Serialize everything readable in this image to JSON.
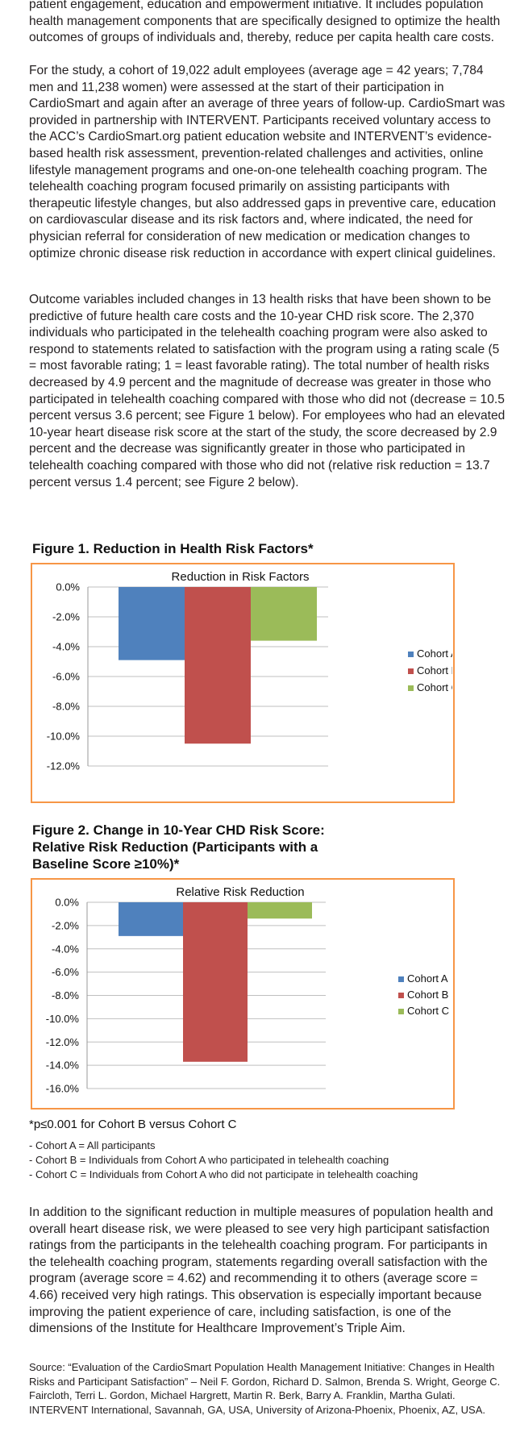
{
  "paragraphs": {
    "intro": "patient engagement, education and empowerment initiative. It includes population health management components that are specifically designed to optimize the health outcomes of groups of individuals and, thereby, reduce per capita health care costs.",
    "study": "For the study, a cohort of 19,022 adult employees (average age = 42 years; 7,784 men and 11,238 women) were assessed at the start of their participation in CardioSmart and again after an average of three years of follow-up. CardioSmart was provided in partnership with INTERVENT. Participants received voluntary access to the ACC’s CardioSmart.org patient education website and INTERVENT’s evidence-based health risk assessment, prevention-related challenges and activities, online lifestyle management programs and one-on-one telehealth coaching program. The telehealth coaching program focused primarily on assisting participants with therapeutic lifestyle changes, but also addressed gaps in preventive care, education on cardiovascular disease and its risk factors and, where indicated, the need for physician referral for consideration of new medication or medication changes to optimize chronic disease risk reduction in accordance with expert clinical guidelines.",
    "outcomes": "Outcome variables included changes in 13 health risks that have been shown to be predictive of future health care costs and the 10-year CHD risk score. The 2,370 individuals who participated in the telehealth coaching program were also asked to respond to statements related to satisfaction with the program using a rating scale (5 = most favorable rating; 1 = least favorable rating). The total number of health risks decreased by 4.9 percent and the magnitude of decrease was greater in those who participated in telehealth coaching compared with those who did not (decrease = 10.5 percent versus 3.6 percent; see Figure 1 below). For employees who had an elevated 10-year heart disease risk score at the start of the study, the score decreased by 2.9 percent and the decrease was significantly greater in those who participated in telehealth coaching compared with those who did not (relative risk reduction = 13.7 percent versus 1.4 percent; see Figure 2 below).",
    "satisfaction": "In addition to the significant reduction in multiple measures of population health and overall heart disease risk, we were pleased to see very high participant satisfaction ratings from the participants in the telehealth coaching program. For participants in the telehealth coaching program, statements regarding overall satisfaction with the program (average score = 4.62) and recommending it to others (average score = 4.66) received very high ratings. This observation is especially important because improving the patient experience of care, including satisfaction, is one of the dimensions of the Institute for Healthcare Improvement’s Triple Aim."
  },
  "figure1": {
    "title": "Figure 1. Reduction in Health Risk Factors*"
  },
  "figure2": {
    "title": "Figure 2. Change in 10-Year CHD Risk Score: Relative Risk Reduction (Participants with a Baseline Score ≥10%)*"
  },
  "figure_note": "*p≤0.001 for Cohort B versus Cohort C",
  "cohort_definitions": {
    "a": "- Cohort A = All participants",
    "b": "- Cohort B = Individuals from Cohort A who participated in telehealth coaching",
    "c": "- Cohort C = Individuals from Cohort A who did not participate in telehealth coaching"
  },
  "source": "Source: “Evaluation of the CardioSmart Population Health Management Initiative: Changes in Health Risks and Participant Satisfaction” – Neil F. Gordon, Richard D. Salmon, Brenda S. Wright, George C. Faircloth, Terri L. Gordon, Michael Hargrett, Martin R. Berk, Barry A. Franklin, Martha Gulati. INTERVENT International, Savannah, GA, USA, University of Arizona-Phoenix, Phoenix, AZ, USA.",
  "colors": {
    "cohort_a": "#4f81bd",
    "cohort_b": "#c0504d",
    "cohort_c": "#9bbb59",
    "frame": "#f79646",
    "grid": "#bfbfbf"
  },
  "chart_data": [
    {
      "type": "bar",
      "title": "Reduction in Risk Factors",
      "ylim": [
        -12,
        0
      ],
      "yticks": [
        0,
        -2,
        -4,
        -6,
        -8,
        -10,
        -12
      ],
      "ytick_labels": [
        "0.0%",
        "-2.0%",
        "-4.0%",
        "-6.0%",
        "-8.0%",
        "-10.0%",
        "-12.0%"
      ],
      "grid": true,
      "legend": "right",
      "series": [
        {
          "name": "Cohort A",
          "values": [
            -4.9
          ]
        },
        {
          "name": "Cohort B",
          "values": [
            -10.5
          ]
        },
        {
          "name": "Cohort C",
          "values": [
            -3.6
          ]
        }
      ]
    },
    {
      "type": "bar",
      "title": "Relative Risk Reduction",
      "ylim": [
        -16,
        0
      ],
      "yticks": [
        0,
        -2,
        -4,
        -6,
        -8,
        -10,
        -12,
        -14,
        -16
      ],
      "ytick_labels": [
        "0.0%",
        "-2.0%",
        "-4.0%",
        "-6.0%",
        "-8.0%",
        "-10.0%",
        "-12.0%",
        "-14.0%",
        "-16.0%"
      ],
      "grid": true,
      "legend": "right",
      "series": [
        {
          "name": "Cohort A",
          "values": [
            -2.9
          ]
        },
        {
          "name": "Cohort B",
          "values": [
            -13.7
          ]
        },
        {
          "name": "Cohort C",
          "values": [
            -1.4
          ]
        }
      ]
    }
  ]
}
